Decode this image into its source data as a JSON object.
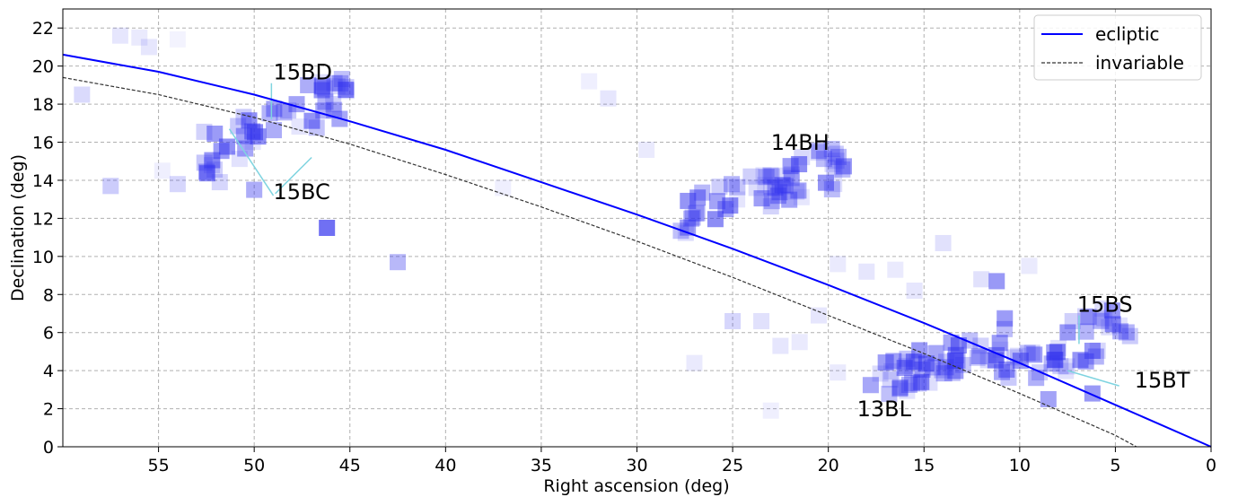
{
  "chart_data": {
    "type": "scatter",
    "xlabel": "Right ascension (deg)",
    "ylabel": "Declination (deg)",
    "xlim": [
      60,
      0
    ],
    "ylim": [
      0,
      23
    ],
    "x_ticks": [
      55,
      50,
      45,
      40,
      35,
      30,
      25,
      20,
      15,
      10,
      5,
      0
    ],
    "y_ticks": [
      0,
      2,
      4,
      6,
      8,
      10,
      12,
      14,
      16,
      18,
      20,
      22
    ],
    "grid": true,
    "legend_position": "top-right",
    "colors": {
      "ecliptic": "#0000ff",
      "invariable": "#333333",
      "fields": "#3333ee",
      "tracks": "#7fd4e0"
    },
    "series": [
      {
        "name": "ecliptic",
        "style": "solid",
        "x": [
          60,
          55,
          50,
          45,
          40,
          35,
          30,
          25,
          20,
          15,
          10,
          5,
          0
        ],
        "y": [
          20.6,
          19.7,
          18.5,
          17.1,
          15.6,
          13.9,
          12.2,
          10.4,
          8.5,
          6.5,
          4.4,
          2.2,
          0
        ]
      },
      {
        "name": "invariable",
        "style": "dashed",
        "x": [
          60,
          55,
          50,
          45,
          40,
          35,
          30,
          25,
          20,
          15,
          10,
          5,
          3.9
        ],
        "y": [
          19.4,
          18.5,
          17.3,
          15.9,
          14.3,
          12.6,
          10.8,
          8.9,
          6.9,
          4.9,
          2.8,
          0.6,
          0
        ]
      }
    ],
    "fields": [
      {
        "label": "15BD / 15BC",
        "ra_range": [
          45,
          53
        ],
        "dec_range": [
          14,
          20
        ],
        "n": 46,
        "seed": 3
      },
      {
        "label": "14BH",
        "ra_range": [
          19,
          28
        ],
        "dec_range": [
          11,
          16
        ],
        "n": 58,
        "seed": 7
      },
      {
        "label": "13BL",
        "ra_range": [
          10.5,
          18
        ],
        "dec_range": [
          2,
          7
        ],
        "n": 52,
        "seed": 11
      },
      {
        "label": "15BS / 15BT",
        "ra_range": [
          4,
          11
        ],
        "dec_range": [
          2.5,
          8
        ],
        "n": 40,
        "seed": 19
      }
    ],
    "isolated_fields": [
      {
        "x": 59,
        "y": 18.5,
        "a": 0.18
      },
      {
        "x": 57.5,
        "y": 13.7,
        "a": 0.25
      },
      {
        "x": 57,
        "y": 21.6,
        "a": 0.12
      },
      {
        "x": 56,
        "y": 21.5,
        "a": 0.1
      },
      {
        "x": 55.5,
        "y": 21.0,
        "a": 0.12
      },
      {
        "x": 54,
        "y": 21.4,
        "a": 0.06
      },
      {
        "x": 54,
        "y": 13.8,
        "a": 0.2
      },
      {
        "x": 54.8,
        "y": 14.5,
        "a": 0.08
      },
      {
        "x": 46.2,
        "y": 11.5,
        "a": 0.7
      },
      {
        "x": 42.5,
        "y": 9.7,
        "a": 0.35
      },
      {
        "x": 37,
        "y": 13.6,
        "a": 0.08
      },
      {
        "x": 32.5,
        "y": 19.2,
        "a": 0.08
      },
      {
        "x": 31.5,
        "y": 18.3,
        "a": 0.12
      },
      {
        "x": 29.5,
        "y": 15.6,
        "a": 0.1
      },
      {
        "x": 25,
        "y": 6.6,
        "a": 0.2
      },
      {
        "x": 23.5,
        "y": 6.6,
        "a": 0.15
      },
      {
        "x": 22.5,
        "y": 5.3,
        "a": 0.12
      },
      {
        "x": 21.5,
        "y": 5.5,
        "a": 0.1
      },
      {
        "x": 23,
        "y": 1.9,
        "a": 0.08
      },
      {
        "x": 27,
        "y": 4.4,
        "a": 0.1
      },
      {
        "x": 19.5,
        "y": 9.6,
        "a": 0.1
      },
      {
        "x": 18,
        "y": 9.2,
        "a": 0.12
      },
      {
        "x": 16.5,
        "y": 9.3,
        "a": 0.1
      },
      {
        "x": 15.5,
        "y": 8.2,
        "a": 0.12
      },
      {
        "x": 14,
        "y": 10.7,
        "a": 0.15
      },
      {
        "x": 12,
        "y": 8.8,
        "a": 0.15
      },
      {
        "x": 11.2,
        "y": 8.7,
        "a": 0.5
      },
      {
        "x": 9.5,
        "y": 9.5,
        "a": 0.1
      },
      {
        "x": 8.5,
        "y": 2.5,
        "a": 0.45
      },
      {
        "x": 6.2,
        "y": 2.8,
        "a": 0.5
      },
      {
        "x": 20.5,
        "y": 6.9,
        "a": 0.12
      },
      {
        "x": 19.5,
        "y": 3.9,
        "a": 0.1
      },
      {
        "x": 51.8,
        "y": 13.9,
        "a": 0.2
      },
      {
        "x": 50,
        "y": 13.5,
        "a": 0.4
      }
    ],
    "tracks": [
      {
        "x": [
          49.1,
          49.1
        ],
        "y": [
          19.1,
          17.2
        ]
      },
      {
        "x": [
          51.3,
          49.0
        ],
        "y": [
          16.7,
          13.2
        ]
      },
      {
        "x": [
          47.0,
          48.9
        ],
        "y": [
          15.2,
          13.3
        ]
      },
      {
        "x": [
          6.9,
          6.9
        ],
        "y": [
          6.9,
          5.4
        ]
      },
      {
        "x": [
          7.5,
          4.8
        ],
        "y": [
          4.0,
          3.2
        ]
      }
    ],
    "annotations": [
      {
        "text": "15BD",
        "x": 49.0,
        "y": 19.3
      },
      {
        "text": "15BC",
        "x": 49.0,
        "y": 13.0
      },
      {
        "text": "14BH",
        "x": 23.0,
        "y": 15.6
      },
      {
        "text": "13BL",
        "x": 18.5,
        "y": 1.6
      },
      {
        "text": "15BS",
        "x": 7.0,
        "y": 7.1
      },
      {
        "text": "15BT",
        "x": 4.0,
        "y": 3.1
      }
    ]
  }
}
